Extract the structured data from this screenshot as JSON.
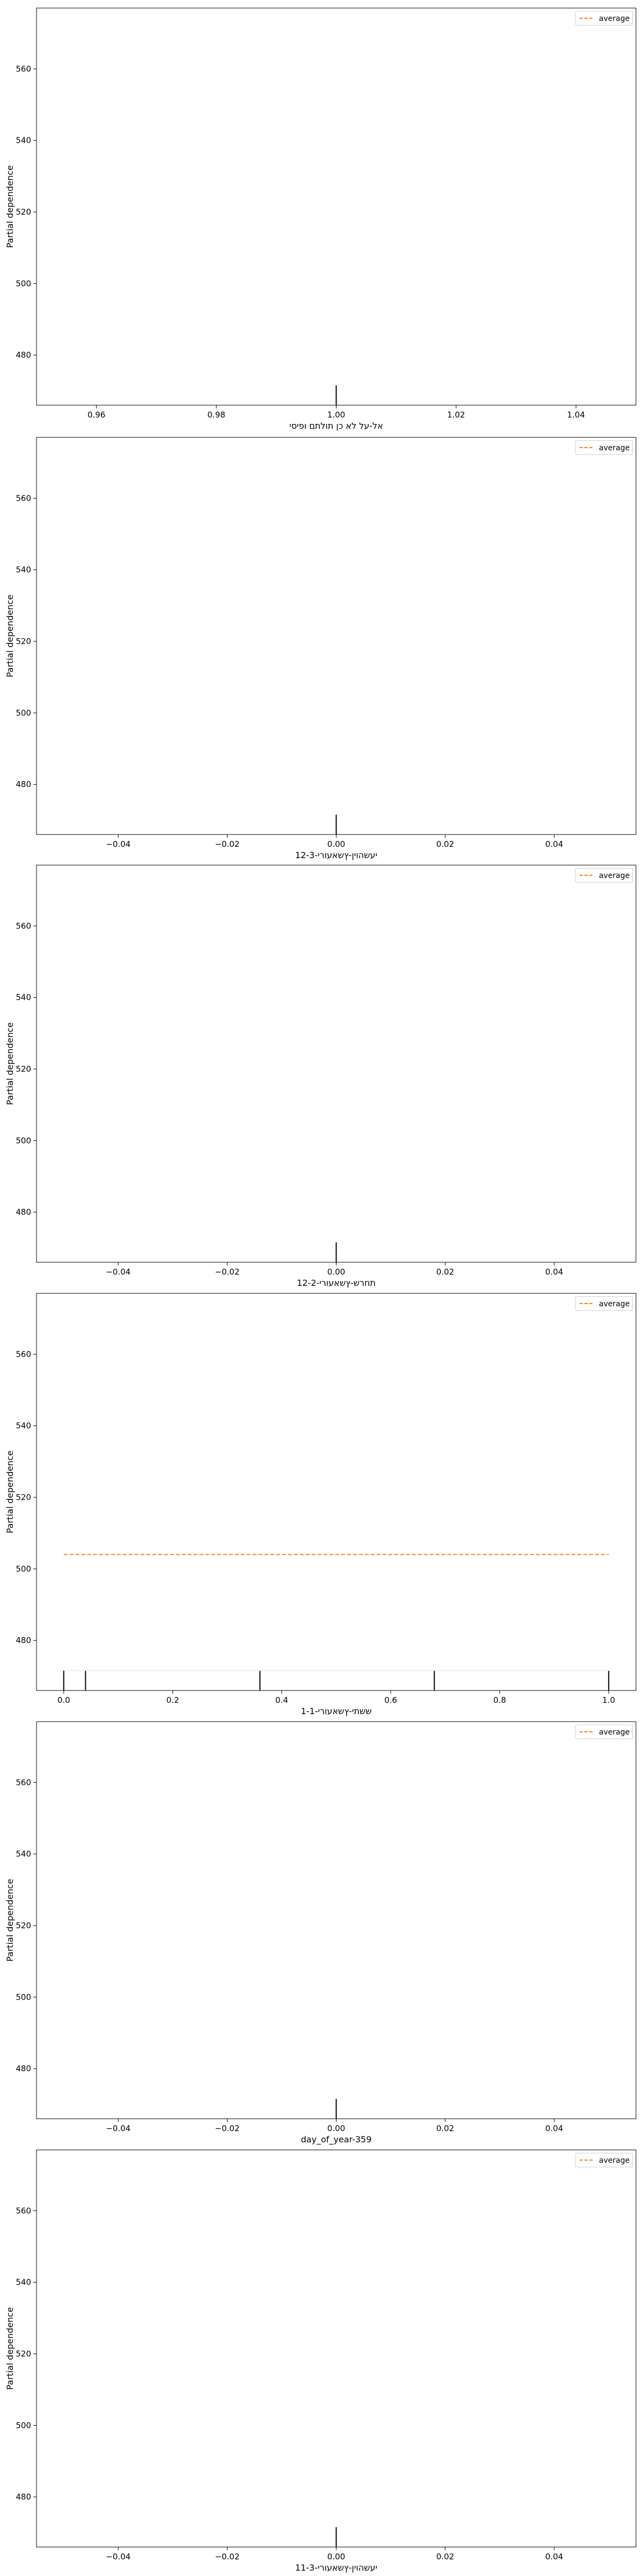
{
  "chart_data": [
    {
      "type": "line",
      "title": "",
      "xlabel": "אל-על לא כן תולתם ופיסי",
      "ylabel": "Partial dependence",
      "xlim": [
        0.95,
        1.05
      ],
      "ylim": [
        466,
        577
      ],
      "xticks": [
        0.96,
        0.98,
        1.0,
        1.02,
        1.04
      ],
      "xtick_labels": [
        "0.96",
        "0.98",
        "1.00",
        "1.02",
        "1.04"
      ],
      "yticks": [
        480,
        500,
        520,
        540,
        560
      ],
      "ytick_labels": [
        "480",
        "500",
        "520",
        "540",
        "560"
      ],
      "series": [
        {
          "name": "average",
          "x": [],
          "y": [],
          "color": "#ff7f0e",
          "style": "dashed"
        }
      ],
      "rug": [
        1.0
      ],
      "legend": "top-right",
      "grid": false
    },
    {
      "type": "line",
      "title": "",
      "xlabel": "יעשהוין-ץשאעורי-12-3",
      "ylabel": "Partial dependence",
      "xlim": [
        -0.055,
        0.055
      ],
      "ylim": [
        466,
        577
      ],
      "xticks": [
        -0.04,
        -0.02,
        0.0,
        0.02,
        0.04
      ],
      "xtick_labels": [
        "−0.04",
        "−0.02",
        "0.00",
        "0.02",
        "0.04"
      ],
      "yticks": [
        480,
        500,
        520,
        540,
        560
      ],
      "ytick_labels": [
        "480",
        "500",
        "520",
        "540",
        "560"
      ],
      "series": [
        {
          "name": "average",
          "x": [],
          "y": [],
          "color": "#ff7f0e",
          "style": "dashed"
        }
      ],
      "rug": [
        0.0
      ],
      "legend": "top-right",
      "grid": false
    },
    {
      "type": "line",
      "title": "",
      "xlabel": "תחרש-ץשאעורי-12-2",
      "ylabel": "Partial dependence",
      "xlim": [
        -0.055,
        0.055
      ],
      "ylim": [
        466,
        577
      ],
      "xticks": [
        -0.04,
        -0.02,
        0.0,
        0.02,
        0.04
      ],
      "xtick_labels": [
        "−0.04",
        "−0.02",
        "0.00",
        "0.02",
        "0.04"
      ],
      "yticks": [
        480,
        500,
        520,
        540,
        560
      ],
      "ytick_labels": [
        "480",
        "500",
        "520",
        "540",
        "560"
      ],
      "series": [
        {
          "name": "average",
          "x": [],
          "y": [],
          "color": "#ff7f0e",
          "style": "dashed"
        }
      ],
      "rug": [
        0.0
      ],
      "legend": "top-right",
      "grid": false
    },
    {
      "type": "line",
      "title": "",
      "xlabel": "ששתי-ץשאעורי-1-1",
      "ylabel": "Partial dependence",
      "xlim": [
        -0.05,
        1.05
      ],
      "ylim": [
        466,
        577
      ],
      "xticks": [
        0.0,
        0.2,
        0.4,
        0.6,
        0.8,
        1.0
      ],
      "xtick_labels": [
        "0.0",
        "0.2",
        "0.4",
        "0.6",
        "0.8",
        "1.0"
      ],
      "yticks": [
        480,
        500,
        520,
        540,
        560
      ],
      "ytick_labels": [
        "480",
        "500",
        "520",
        "540",
        "560"
      ],
      "series": [
        {
          "name": "average",
          "x": [
            0.0,
            1.0
          ],
          "y": [
            504,
            504
          ],
          "color": "#ff7f0e",
          "style": "dashed"
        }
      ],
      "rug": [
        0.0,
        0.04,
        0.36,
        0.68,
        1.0
      ],
      "legend": "top-right",
      "grid": false
    },
    {
      "type": "line",
      "title": "",
      "xlabel": "day_of_year-359",
      "ylabel": "Partial dependence",
      "xlim": [
        -0.055,
        0.055
      ],
      "ylim": [
        466,
        577
      ],
      "xticks": [
        -0.04,
        -0.02,
        0.0,
        0.02,
        0.04
      ],
      "xtick_labels": [
        "−0.04",
        "−0.02",
        "0.00",
        "0.02",
        "0.04"
      ],
      "yticks": [
        480,
        500,
        520,
        540,
        560
      ],
      "ytick_labels": [
        "480",
        "500",
        "520",
        "540",
        "560"
      ],
      "series": [
        {
          "name": "average",
          "x": [],
          "y": [],
          "color": "#ff7f0e",
          "style": "dashed"
        }
      ],
      "rug": [
        0.0
      ],
      "legend": "top-right",
      "grid": false
    },
    {
      "type": "line",
      "title": "",
      "xlabel": "יעשהוין-ץשאעורי-11-3",
      "ylabel": "Partial dependence",
      "xlim": [
        -0.055,
        0.055
      ],
      "ylim": [
        466,
        577
      ],
      "xticks": [
        -0.04,
        -0.02,
        0.0,
        0.02,
        0.04
      ],
      "xtick_labels": [
        "−0.04",
        "−0.02",
        "0.00",
        "0.02",
        "0.04"
      ],
      "yticks": [
        480,
        500,
        520,
        540,
        560
      ],
      "ytick_labels": [
        "480",
        "500",
        "520",
        "540",
        "560"
      ],
      "series": [
        {
          "name": "average",
          "x": [],
          "y": [],
          "color": "#ff7f0e",
          "style": "dashed"
        }
      ],
      "rug": [
        0.0
      ],
      "legend": "top-right",
      "grid": false
    }
  ]
}
